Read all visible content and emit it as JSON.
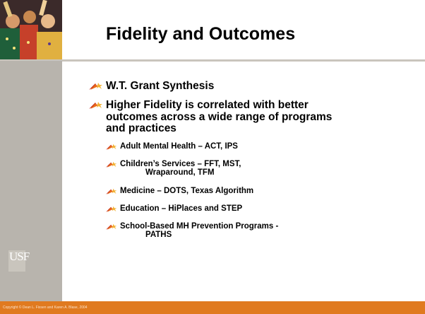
{
  "title": "Fidelity and Outcomes",
  "logo": "USF",
  "bullets": [
    {
      "lines": [
        "W.T. Grant Synthesis"
      ]
    },
    {
      "lines": [
        "Higher Fidelity is correlated with better",
        "outcomes across a wide range of programs",
        "and practices"
      ],
      "sub": [
        {
          "lines": [
            "Adult Mental Health – ACT, IPS"
          ]
        },
        {
          "lines": [
            "Children’s Services – FFT, MST,",
            "Wraparound, TFM"
          ]
        },
        {
          "lines": [
            "Medicine – DOTS, Texas Algorithm"
          ]
        },
        {
          "lines": [
            "Education – HiPlaces and STEP"
          ]
        },
        {
          "lines": [
            "School-Based MH Prevention Programs -",
            "PATHS"
          ]
        }
      ]
    }
  ],
  "copyright": "Copyright © Dean L. Fixsen and Karen A. Blase, 2004"
}
